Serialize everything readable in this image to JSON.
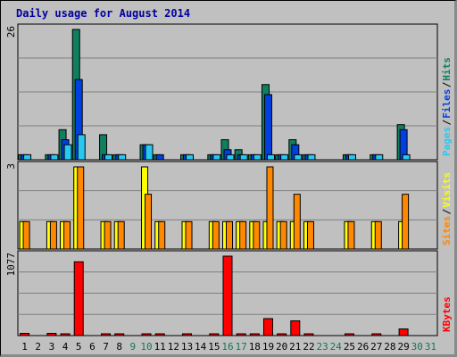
{
  "chart_data": {
    "type": "bar",
    "title": "Daily usage for August 2014",
    "categories": [
      "1",
      "2",
      "3",
      "4",
      "5",
      "6",
      "7",
      "8",
      "9",
      "10",
      "11",
      "12",
      "13",
      "14",
      "15",
      "16",
      "17",
      "18",
      "19",
      "20",
      "21",
      "22",
      "23",
      "24",
      "25",
      "26",
      "27",
      "28",
      "29",
      "30",
      "31"
    ],
    "weekend_days": [
      "9",
      "10",
      "16",
      "17",
      "23",
      "24",
      "30",
      "31"
    ],
    "colors": {
      "hits": "#0f7f5f",
      "files": "#0040e0",
      "pages": "#28c8f0",
      "visits": "#ffff00",
      "sites": "#ff8800",
      "kbytes": "#ff0000",
      "weekday_label": "#000000",
      "weekend_label": "#107850",
      "title": "#0000a0",
      "grid": "#808080"
    },
    "panels": [
      {
        "id": "hits-files-pages",
        "ymax_label": "26",
        "ylim": [
          0,
          26
        ],
        "legend": [
          {
            "name": "Hits",
            "color_key": "hits"
          },
          {
            "name": "Files",
            "color_key": "files"
          },
          {
            "name": "Pages",
            "color_key": "pages"
          }
        ],
        "series": [
          {
            "name": "Hits",
            "color_key": "hits",
            "values": [
              1,
              0,
              1,
              6,
              26,
              0,
              5,
              1,
              0,
              3,
              1,
              0,
              1,
              0,
              1,
              4,
              2,
              1,
              15,
              1,
              4,
              1,
              0,
              0,
              1,
              0,
              1,
              0,
              7,
              0,
              0
            ]
          },
          {
            "name": "Files",
            "color_key": "files",
            "values": [
              1,
              0,
              1,
              4,
              16,
              0,
              1,
              1,
              0,
              3,
              1,
              0,
              1,
              0,
              1,
              2,
              1,
              1,
              13,
              1,
              3,
              1,
              0,
              0,
              1,
              0,
              1,
              0,
              6,
              0,
              0
            ]
          },
          {
            "name": "Pages",
            "color_key": "pages",
            "values": [
              1,
              0,
              1,
              3,
              5,
              0,
              1,
              1,
              0,
              3,
              0,
              0,
              1,
              0,
              1,
              1,
              1,
              1,
              1,
              1,
              1,
              1,
              0,
              0,
              1,
              0,
              1,
              0,
              1,
              0,
              0
            ]
          }
        ]
      },
      {
        "id": "visits-sites",
        "ymax_label": "3",
        "ylim": [
          0,
          3
        ],
        "legend": [
          {
            "name": "Visits",
            "color_key": "visits"
          },
          {
            "name": "Sites",
            "color_key": "sites"
          }
        ],
        "series": [
          {
            "name": "Visits",
            "color_key": "visits",
            "values": [
              1,
              0,
              1,
              1,
              3,
              0,
              1,
              1,
              0,
              3,
              1,
              0,
              1,
              0,
              1,
              1,
              1,
              1,
              1,
              1,
              1,
              1,
              0,
              0,
              1,
              0,
              1,
              0,
              1,
              0,
              0
            ]
          },
          {
            "name": "Sites",
            "color_key": "sites",
            "values": [
              1,
              0,
              1,
              1,
              3,
              0,
              1,
              1,
              0,
              2,
              1,
              0,
              1,
              0,
              1,
              1,
              1,
              1,
              3,
              1,
              2,
              1,
              0,
              0,
              1,
              0,
              1,
              0,
              2,
              0,
              0
            ]
          }
        ]
      },
      {
        "id": "kbytes",
        "ymax_label": "1077",
        "ylim": [
          0,
          1077
        ],
        "legend": [
          {
            "name": "KBytes",
            "color_key": "kbytes"
          }
        ],
        "series": [
          {
            "name": "KBytes",
            "color_key": "kbytes",
            "values": [
              30,
              0,
              30,
              20,
              1000,
              0,
              20,
              20,
              0,
              20,
              20,
              0,
              20,
              0,
              20,
              1077,
              20,
              20,
              230,
              20,
              200,
              20,
              0,
              0,
              20,
              0,
              20,
              0,
              90,
              0,
              0
            ]
          }
        ]
      }
    ]
  }
}
